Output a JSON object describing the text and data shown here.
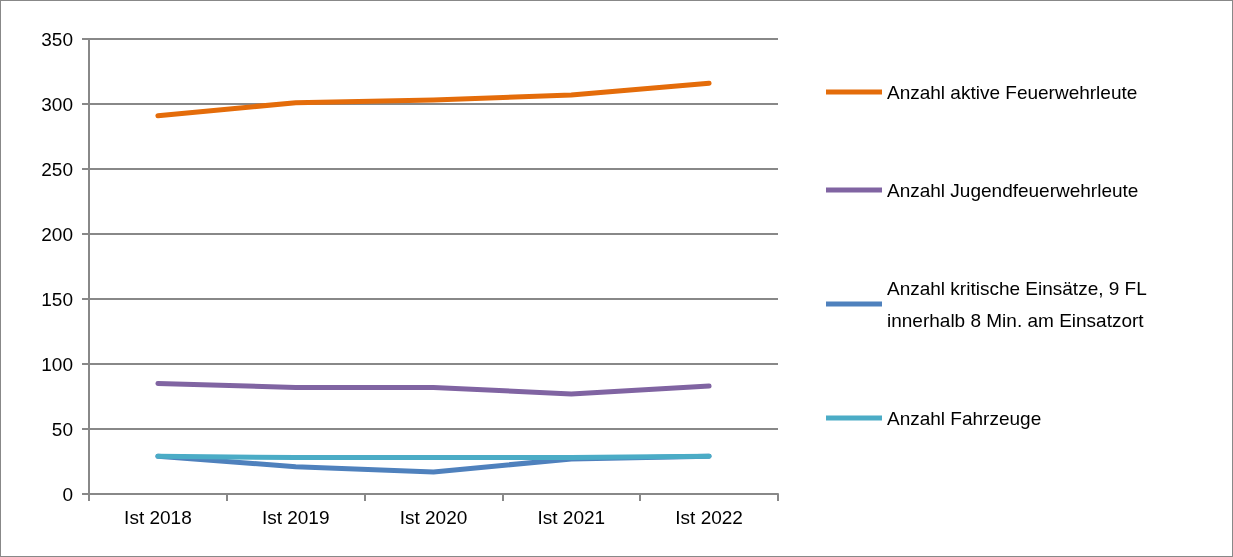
{
  "chart_data": {
    "type": "line",
    "categories": [
      "Ist 2018",
      "Ist 2019",
      "Ist 2020",
      "Ist 2021",
      "Ist 2022"
    ],
    "series": [
      {
        "name": "Anzahl aktive Feuerwehrleute",
        "color": "#e46c0a",
        "values": [
          291,
          301,
          303,
          307,
          316
        ]
      },
      {
        "name": "Anzahl Jugendfeuerwehrleute",
        "color": "#8064a2",
        "values": [
          85,
          82,
          82,
          77,
          83
        ]
      },
      {
        "name": "Anzahl kritische Einsätze, 9 FL innerhalb 8 Min. am Einsatzort",
        "color": "#4f81bd",
        "values": [
          29,
          21,
          17,
          27,
          29
        ]
      },
      {
        "name": "Anzahl Fahrzeuge",
        "color": "#4bacc6",
        "values": [
          29,
          28,
          28,
          28,
          29
        ]
      }
    ],
    "ylim": [
      0,
      350
    ],
    "yticks": [
      0,
      50,
      100,
      150,
      200,
      250,
      300,
      350
    ],
    "grid": "y",
    "legend": "right",
    "marker": "none",
    "line_style": "solid"
  }
}
